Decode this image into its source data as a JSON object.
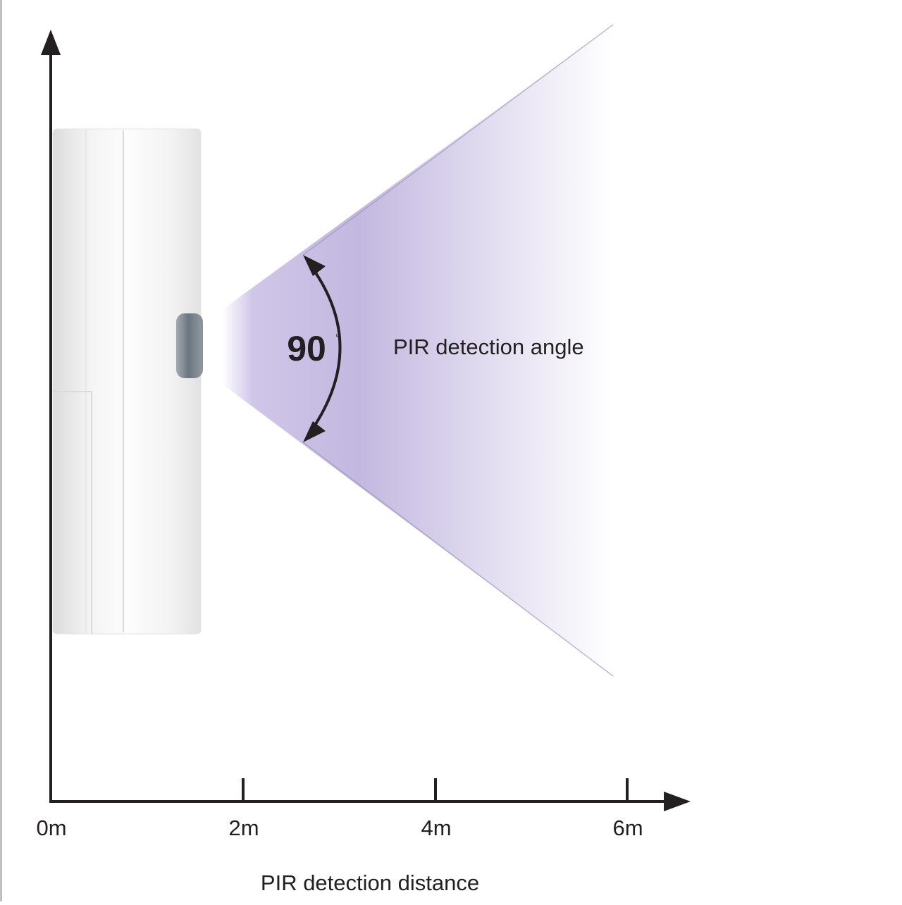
{
  "angle": {
    "value": "90",
    "unit": "°",
    "label": "PIR detection angle"
  },
  "axis": {
    "ticks": [
      "0m",
      "2m",
      "4m",
      "6m"
    ],
    "label": "PIR detection distance"
  }
}
